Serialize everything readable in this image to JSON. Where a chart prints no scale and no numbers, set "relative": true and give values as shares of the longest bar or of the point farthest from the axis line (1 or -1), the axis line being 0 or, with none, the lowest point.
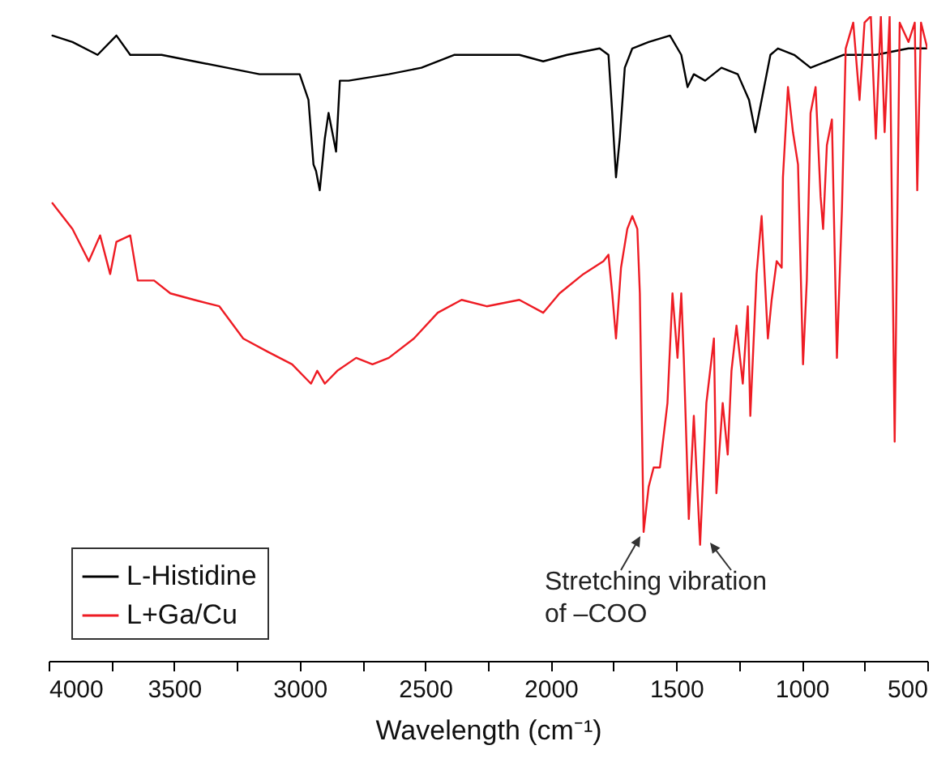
{
  "chart_data": {
    "type": "line",
    "relative": true,
    "xlabel": "Wavelength (cm⁻¹)",
    "xlim": [
      4000,
      500
    ],
    "xticks": [
      4000,
      {
        "value": 3750,
        "label": null
      },
      3500,
      {
        "value": 3250,
        "label": null
      },
      3000,
      {
        "value": 2750,
        "label": null
      },
      2500,
      {
        "value": 2250,
        "label": null
      },
      2000,
      {
        "value": 1750,
        "label": null
      },
      1500,
      {
        "value": 1250,
        "label": null
      },
      1000,
      {
        "value": 750,
        "label": null
      },
      500
    ],
    "legend": "bottom left",
    "line_style": "solid",
    "marker": "none",
    "grid": false,
    "annotations": [
      "Stretching vibration of –COO"
    ],
    "series": [
      {
        "name": "L-Histidine",
        "color": "#000000",
        "x": [
          3985,
          3905,
          3805,
          3730,
          3675,
          3550,
          3420,
          3290,
          3160,
          3030,
          3000,
          2965,
          2945,
          2935,
          2920,
          2900,
          2885,
          2855,
          2840,
          2805,
          2645,
          2515,
          2385,
          2255,
          2125,
          2030,
          1935,
          1805,
          1770,
          1755,
          1740,
          1725,
          1705,
          1675,
          1610,
          1525,
          1480,
          1455,
          1430,
          1385,
          1320,
          1255,
          1210,
          1185,
          1160,
          1125,
          1095,
          1030,
          965,
          835,
          705,
          575,
          500
        ],
        "values": [
          0.97,
          0.96,
          0.94,
          0.97,
          0.94,
          0.94,
          0.93,
          0.92,
          0.91,
          0.91,
          0.91,
          0.87,
          0.77,
          0.76,
          0.73,
          0.81,
          0.85,
          0.79,
          0.9,
          0.9,
          0.91,
          0.92,
          0.94,
          0.94,
          0.94,
          0.93,
          0.94,
          0.95,
          0.94,
          0.85,
          0.75,
          0.81,
          0.92,
          0.95,
          0.96,
          0.97,
          0.94,
          0.89,
          0.91,
          0.9,
          0.92,
          0.91,
          0.87,
          0.82,
          0.87,
          0.94,
          0.95,
          0.94,
          0.92,
          0.94,
          0.94,
          0.95,
          0.95
        ]
      },
      {
        "name": "L+Ga/Cu",
        "color": "#ee1c24",
        "x": [
          3985,
          3905,
          3840,
          3795,
          3755,
          3730,
          3675,
          3645,
          3580,
          3515,
          3420,
          3320,
          3225,
          3130,
          3030,
          2955,
          2930,
          2900,
          2850,
          2775,
          2710,
          2645,
          2545,
          2450,
          2355,
          2255,
          2125,
          2030,
          1965,
          1870,
          1790,
          1770,
          1755,
          1740,
          1720,
          1695,
          1675,
          1655,
          1645,
          1630,
          1610,
          1590,
          1565,
          1535,
          1515,
          1495,
          1480,
          1470,
          1450,
          1430,
          1405,
          1380,
          1350,
          1340,
          1315,
          1295,
          1280,
          1260,
          1235,
          1215,
          1205,
          1180,
          1160,
          1135,
          1120,
          1100,
          1080,
          1075,
          1055,
          1035,
          1015,
          995,
          980,
          965,
          945,
          925,
          915,
          900,
          880,
          860,
          840,
          825,
          795,
          770,
          750,
          725,
          705,
          685,
          670,
          650,
          630,
          610,
          575,
          550,
          540,
          525,
          500
        ],
        "values": [
          0.71,
          0.67,
          0.62,
          0.66,
          0.6,
          0.65,
          0.66,
          0.59,
          0.59,
          0.57,
          0.56,
          0.55,
          0.5,
          0.48,
          0.46,
          0.43,
          0.45,
          0.43,
          0.45,
          0.47,
          0.46,
          0.47,
          0.5,
          0.54,
          0.56,
          0.55,
          0.56,
          0.54,
          0.57,
          0.6,
          0.62,
          0.63,
          0.57,
          0.5,
          0.61,
          0.67,
          0.69,
          0.67,
          0.57,
          0.2,
          0.27,
          0.3,
          0.3,
          0.4,
          0.57,
          0.47,
          0.57,
          0.47,
          0.22,
          0.38,
          0.18,
          0.4,
          0.5,
          0.26,
          0.4,
          0.32,
          0.45,
          0.52,
          0.43,
          0.55,
          0.38,
          0.6,
          0.69,
          0.5,
          0.56,
          0.62,
          0.61,
          0.75,
          0.89,
          0.82,
          0.77,
          0.46,
          0.59,
          0.85,
          0.89,
          0.72,
          0.67,
          0.8,
          0.84,
          0.47,
          0.7,
          0.95,
          0.99,
          0.87,
          0.99,
          1.0,
          0.81,
          1.0,
          0.82,
          1.0,
          0.34,
          0.99,
          0.96,
          0.99,
          0.73,
          0.99,
          0.95
        ]
      }
    ]
  }
}
